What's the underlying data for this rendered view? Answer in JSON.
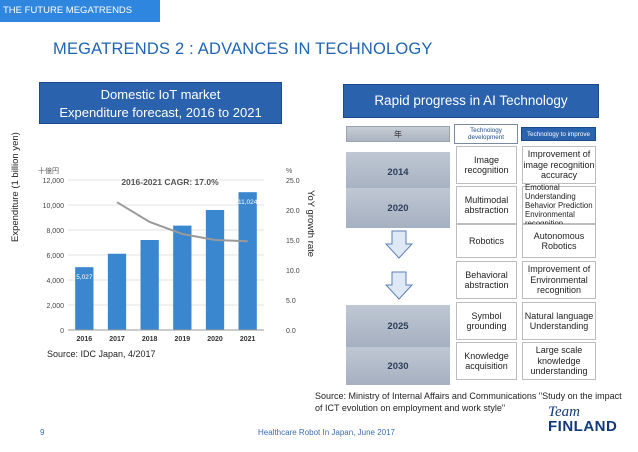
{
  "header": {
    "section_label": "THE FUTURE MEGATRENDS",
    "title": "MEGATRENDS 2 : ADVANCES IN TECHNOLOGY"
  },
  "iot": {
    "title_line1": "Domestic IoT market",
    "title_line2": "Expenditure forecast, 2016 to 2021",
    "left_axis_title": "Expenditure (1 billion yen)",
    "right_axis_title": "YoY growth rate",
    "unit_left": "十億円",
    "unit_right": "%",
    "source": "Source:  IDC Japan, 4/2017"
  },
  "chart_data": {
    "type": "bar",
    "title": "2016-2021 CAGR: 17.0%",
    "categories": [
      "2016",
      "2017",
      "2018",
      "2019",
      "2020",
      "2021"
    ],
    "series": [
      {
        "name": "Expenditure",
        "values": [
          5027,
          6100,
          7200,
          8350,
          9600,
          11024
        ],
        "axis": "left"
      },
      {
        "name": "YoY growth rate",
        "values": [
          null,
          21.3,
          18.0,
          16.0,
          15.0,
          14.8
        ],
        "axis": "right"
      }
    ],
    "data_labels": {
      "2016": "5,027",
      "2021": "11,024"
    },
    "ylim": [
      0,
      12000
    ],
    "yticks": [
      "0",
      "2,000",
      "4,000",
      "6,000",
      "8,000",
      "10,000",
      "12,000"
    ],
    "y2lim": [
      0,
      25
    ],
    "y2ticks": [
      "0.0",
      "5.0",
      "10.0",
      "15.0",
      "20.0",
      "25.0"
    ],
    "xlabel": "",
    "ylabel": "Expenditure (1 billion yen)",
    "y2label": "YoY growth rate"
  },
  "ai": {
    "title": "Rapid progress in AI Technology",
    "col_year": "年",
    "col_tech": "Technology development",
    "col_improve": "Technology to improve",
    "years": [
      "2014",
      "2020",
      "2025",
      "2030"
    ],
    "tech": [
      "Image recognition",
      "Multimodal abstraction",
      "Robotics",
      "Behavioral abstraction",
      "Symbol grounding",
      "Knowledge acquisition"
    ],
    "improve": [
      "Improvement of image recognition accuracy",
      "Emotional Understanding Behavior Prediction Environmental recognition",
      "Autonomous Robotics",
      "Improvement of Environmental recognition",
      "Natural language Understanding",
      "Large scale knowledge understanding"
    ],
    "source": "Source:  Ministry of Internal Affairs and Communications \"Study on the impact of ICT evolution on employment and work style\""
  },
  "footer": {
    "page": "9",
    "text": "Healthcare Robot In Japan, June 2017",
    "logo_top": "Team",
    "logo_bottom": "FINLAND"
  },
  "colors": {
    "accent": "#2a62ad",
    "title": "#1f64b4",
    "bar": "#3a86cf",
    "line": "#9a9a9a"
  }
}
